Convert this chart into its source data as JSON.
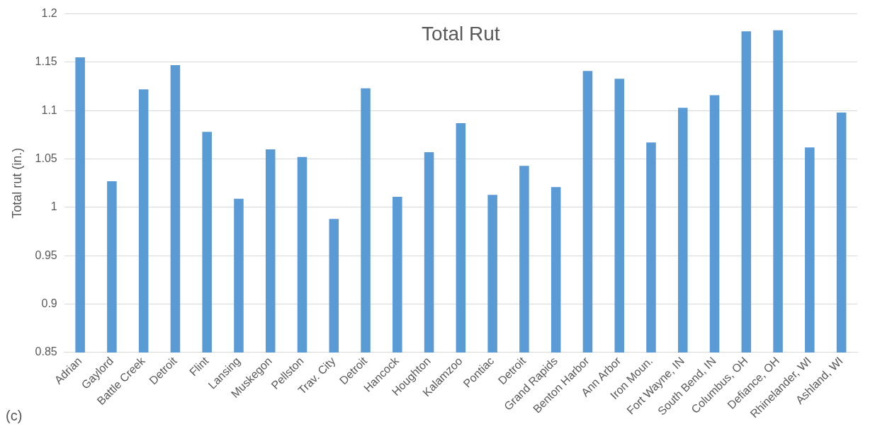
{
  "chart_data": {
    "type": "bar",
    "title": "Total Rut",
    "ylabel": "Total rut (in.)",
    "categories": [
      "Adrian",
      "Gaylord",
      "Battle Creek",
      "Detroit",
      "Flint",
      "Lansing",
      "Muskegon",
      "Pellston",
      "Trav. City",
      "Detroit",
      "Hancock",
      "Houghton",
      "Kalamzoo",
      "Pontiac",
      "Detroit",
      "Grand Rapids",
      "Benton Harbor",
      "Ann Arbor",
      "Iron Moun.",
      "Fort Wayne, IN",
      "South Bend, IN",
      "Columbus, OH",
      "Defiance, OH",
      "Rhinelander, WI",
      "Ashland, WI"
    ],
    "values": [
      1.155,
      1.027,
      1.122,
      1.147,
      1.078,
      1.009,
      1.06,
      1.052,
      0.988,
      1.123,
      1.011,
      1.057,
      1.087,
      1.013,
      1.043,
      1.021,
      1.141,
      1.133,
      1.067,
      1.103,
      1.116,
      1.182,
      1.183,
      1.062,
      1.098
    ],
    "color": "#5b9bd5",
    "ylim": [
      0.85,
      1.2
    ],
    "yticks": [
      0.85,
      0.9,
      0.95,
      1,
      1.05,
      1.1,
      1.15,
      1.2
    ],
    "grid": "y",
    "annotations": [
      "(c)"
    ]
  }
}
